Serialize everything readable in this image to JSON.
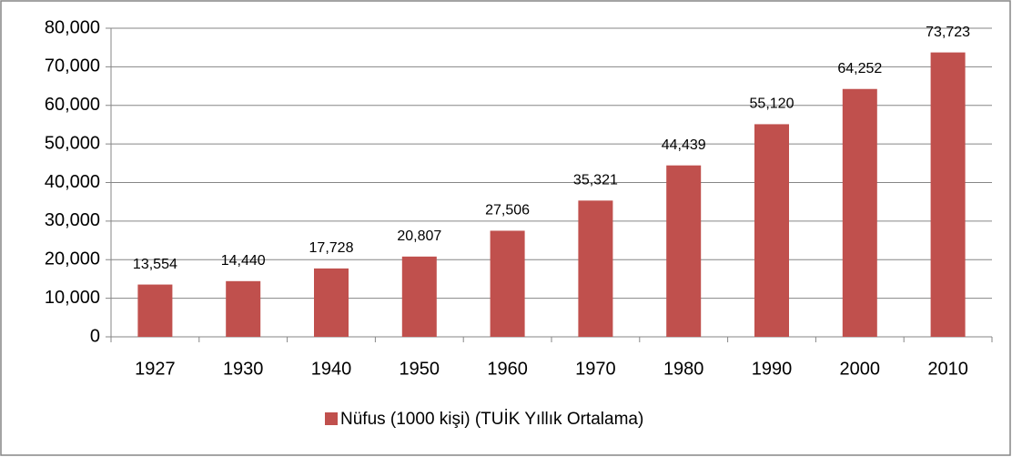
{
  "chart_data": {
    "type": "bar",
    "categories": [
      "1927",
      "1930",
      "1940",
      "1950",
      "1960",
      "1970",
      "1980",
      "1990",
      "2000",
      "2010"
    ],
    "series": [
      {
        "name": "Nüfus (1000 kişi) (TUİK Yıllık Ortalama)",
        "color": "#c0504d",
        "values": [
          13554,
          14440,
          17728,
          20807,
          27506,
          35321,
          44439,
          55120,
          64252,
          73723
        ],
        "value_labels": [
          "13,554",
          "14,440",
          "17,728",
          "20,807",
          "27,506",
          "35,321",
          "44,439",
          "55,120",
          "64,252",
          "73,723"
        ]
      }
    ],
    "ylim": [
      0,
      80000
    ],
    "yticks": [
      0,
      {
        "value": 10000,
        "label": "10,000"
      },
      {
        "value": 20000,
        "label": "20,000"
      },
      {
        "value": 30000,
        "label": "30,000"
      },
      {
        "value": 40000,
        "label": "40,000"
      },
      {
        "value": 50000,
        "label": "50,000"
      },
      {
        "value": 60000,
        "label": "60,000"
      },
      {
        "value": 70000,
        "label": "70,000"
      },
      {
        "value": 80000,
        "label": "80,000"
      }
    ],
    "grid": true,
    "legend": "bottom"
  }
}
